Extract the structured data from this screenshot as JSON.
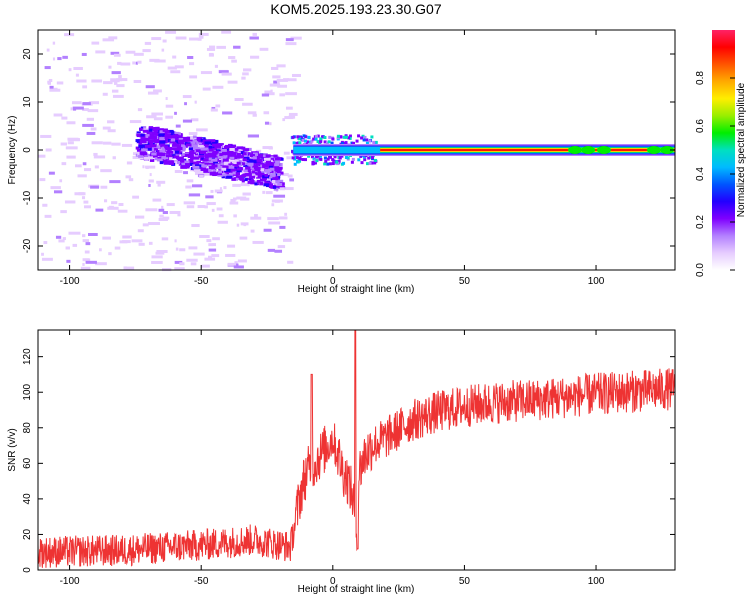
{
  "title": "KOM5.2025.193.23.30.G07",
  "colors": {
    "snr_line": "#ee3333",
    "axes": "#000000",
    "background": "#ffffff",
    "colormap": [
      "#ffffff",
      "#e6ccff",
      "#b380ff",
      "#7f00ff",
      "#2200ff",
      "#0055ff",
      "#00bbff",
      "#00e0c0",
      "#00ee00",
      "#99ee00",
      "#ffee00",
      "#ffaa00",
      "#ff5500",
      "#ff0000",
      "#ff2266"
    ]
  },
  "chart_data": [
    {
      "type": "heatmap",
      "name": "spectrogram",
      "xlabel": "Height of straight line (km)",
      "ylabel": "Frequency (Hz)",
      "xlim": [
        -112,
        130
      ],
      "ylim": [
        -25,
        25
      ],
      "xticks": [
        -100,
        -50,
        0,
        50,
        100
      ],
      "xtick_labels": [
        "-100",
        "-50",
        "0",
        "50",
        "100"
      ],
      "yticks": [
        -20,
        -10,
        0,
        10,
        20
      ],
      "ytick_labels": [
        "-20",
        "-10",
        "0",
        "10",
        "20"
      ],
      "colorbar": {
        "label": "Normalized spectral amplitude",
        "range": [
          0,
          1
        ],
        "ticks": [
          0.0,
          0.2,
          0.4,
          0.6,
          0.8
        ],
        "tick_labels": [
          "0.0",
          "0.2",
          "0.4",
          "0.6",
          "0.8"
        ]
      },
      "features": [
        {
          "description": "scattered weak noise",
          "x_range": [
            -112,
            -15
          ],
          "freq_range": [
            -25,
            25
          ],
          "amplitude": 0.05
        },
        {
          "description": "broad purple blob",
          "x_range": [
            -75,
            -20
          ],
          "freq_range": [
            -8,
            4
          ],
          "amplitude": 0.12
        },
        {
          "description": "bright line near 0 Hz",
          "x_range": [
            -15,
            130
          ],
          "freq": 0,
          "amplitude": 1.0
        }
      ]
    },
    {
      "type": "line",
      "name": "snr",
      "xlabel": "Height of straight line (km)",
      "ylabel": "SNR (v/v)",
      "xlim": [
        -112,
        130
      ],
      "ylim": [
        0,
        135
      ],
      "xticks": [
        -100,
        -50,
        0,
        50,
        100
      ],
      "xtick_labels": [
        "-100",
        "-50",
        "0",
        "50",
        "100"
      ],
      "yticks": [
        0,
        20,
        40,
        60,
        80,
        100,
        120
      ],
      "ytick_labels": [
        "0",
        "20",
        "40",
        "60",
        "80",
        "100",
        "120"
      ],
      "trend": {
        "x": [
          -112,
          -80,
          -50,
          -30,
          -16,
          -14,
          -12,
          -10,
          -8,
          -6,
          -4,
          -2,
          0,
          2,
          4,
          6,
          8,
          9,
          10,
          12,
          15,
          20,
          25,
          30,
          40,
          50,
          60,
          80,
          100,
          130
        ],
        "y": [
          10,
          11,
          14,
          17,
          13,
          30,
          45,
          55,
          58,
          62,
          66,
          70,
          74,
          65,
          55,
          50,
          38,
          20,
          55,
          64,
          70,
          74,
          79,
          84,
          89,
          92,
          94,
          96,
          99,
          102
        ]
      },
      "spikes": [
        {
          "x": -8,
          "y": 110
        },
        {
          "x": 8.5,
          "y": 135
        },
        {
          "x": 9.5,
          "y": 12
        }
      ]
    }
  ]
}
